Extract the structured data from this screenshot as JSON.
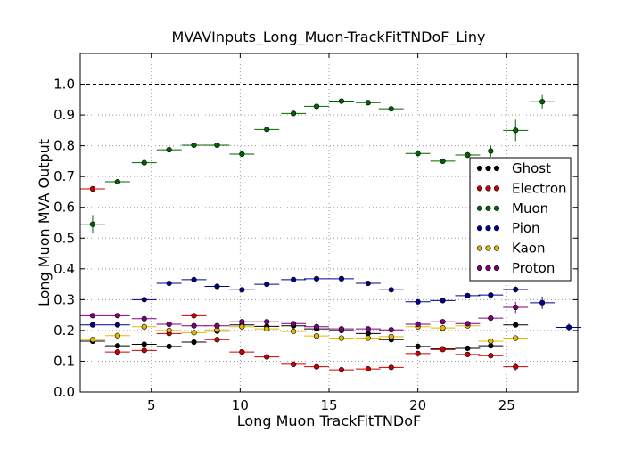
{
  "chart_data": {
    "type": "scatter",
    "title": "MVAVInputs_Long_Muon-TrackFitTNDoF_Liny",
    "xlabel": "Long Muon TrackFitTNDoF",
    "ylabel": "Long Muon MVA Output",
    "xlim": [
      1.0,
      29.0
    ],
    "ylim": [
      0.0,
      1.1
    ],
    "x_ticks": [
      5,
      10,
      15,
      20,
      25
    ],
    "x_tick_labels": [
      "5",
      "10",
      "15",
      "20",
      "25"
    ],
    "y_ticks": [
      0.0,
      0.1,
      0.2,
      0.3,
      0.4,
      0.5,
      0.6,
      0.7,
      0.8,
      0.9,
      1.0
    ],
    "y_tick_labels": [
      "0.0",
      "0.1",
      "0.2",
      "0.3",
      "0.4",
      "0.5",
      "0.6",
      "0.7",
      "0.8",
      "0.9",
      "1.0"
    ],
    "reference_line": 1.0,
    "grid": true,
    "legend_position": "right",
    "bin_half_width": 0.7,
    "series": [
      {
        "name": "Ghost",
        "color": "#000000",
        "x": [
          1.7,
          3.1,
          4.6,
          6.0,
          7.4,
          8.7,
          10.1,
          11.5,
          13.0,
          14.3,
          15.7,
          17.2,
          18.5,
          20.0,
          21.4,
          22.8,
          24.1,
          25.5
        ],
        "y": [
          0.165,
          0.15,
          0.155,
          0.148,
          0.162,
          0.198,
          0.218,
          0.213,
          0.215,
          0.205,
          0.2,
          0.19,
          0.17,
          0.148,
          0.14,
          0.142,
          0.15,
          0.218
        ],
        "err": [
          0.005,
          0.005,
          0.005,
          0.005,
          0.005,
          0.005,
          0.005,
          0.005,
          0.005,
          0.005,
          0.005,
          0.005,
          0.005,
          0.005,
          0.005,
          0.005,
          0.005,
          0.008
        ]
      },
      {
        "name": "Electron",
        "color": "#cc0000",
        "x": [
          1.7,
          3.1,
          4.6,
          6.0,
          7.4,
          8.7,
          10.1,
          11.5,
          13.0,
          14.3,
          15.7,
          17.2,
          18.5,
          20.0,
          21.4,
          22.8,
          24.1,
          25.5
        ],
        "y": [
          0.66,
          0.13,
          0.135,
          0.19,
          0.248,
          0.17,
          0.13,
          0.114,
          0.09,
          0.082,
          0.072,
          0.075,
          0.08,
          0.125,
          0.138,
          0.122,
          0.118,
          0.082
        ],
        "err": [
          0.006,
          0.008,
          0.006,
          0.005,
          0.006,
          0.005,
          0.005,
          0.005,
          0.005,
          0.005,
          0.005,
          0.005,
          0.005,
          0.005,
          0.006,
          0.006,
          0.008,
          0.012
        ]
      },
      {
        "name": "Muon",
        "color": "#006400",
        "x": [
          1.7,
          3.1,
          4.6,
          6.0,
          7.4,
          8.7,
          10.1,
          11.5,
          13.0,
          14.3,
          15.7,
          17.2,
          18.5,
          20.0,
          21.4,
          22.8,
          24.1,
          25.5,
          27.0
        ],
        "y": [
          0.545,
          0.683,
          0.745,
          0.787,
          0.802,
          0.802,
          0.773,
          0.853,
          0.905,
          0.928,
          0.945,
          0.94,
          0.92,
          0.775,
          0.75,
          0.77,
          0.783,
          0.85,
          0.943
        ],
        "err": [
          0.03,
          0.008,
          0.006,
          0.005,
          0.005,
          0.005,
          0.005,
          0.005,
          0.005,
          0.005,
          0.005,
          0.005,
          0.006,
          0.006,
          0.008,
          0.01,
          0.018,
          0.035,
          0.022
        ]
      },
      {
        "name": "Pion",
        "color": "#00008b",
        "x": [
          1.7,
          3.1,
          4.6,
          6.0,
          7.4,
          8.7,
          10.1,
          11.5,
          13.0,
          14.3,
          15.7,
          17.2,
          18.5,
          20.0,
          21.4,
          22.8,
          24.1,
          25.5,
          27.0,
          28.5
        ],
        "y": [
          0.218,
          0.218,
          0.3,
          0.353,
          0.365,
          0.343,
          0.332,
          0.35,
          0.365,
          0.368,
          0.368,
          0.353,
          0.332,
          0.293,
          0.297,
          0.313,
          0.315,
          0.333,
          0.29,
          0.21
        ],
        "err": [
          0.005,
          0.005,
          0.005,
          0.005,
          0.005,
          0.005,
          0.005,
          0.005,
          0.005,
          0.005,
          0.005,
          0.005,
          0.005,
          0.005,
          0.005,
          0.006,
          0.006,
          0.01,
          0.02,
          0.012
        ]
      },
      {
        "name": "Kaon",
        "color": "#e6b800",
        "x": [
          1.7,
          3.1,
          4.6,
          6.0,
          7.4,
          8.7,
          10.1,
          11.5,
          13.0,
          14.3,
          15.7,
          17.2,
          18.5,
          20.0,
          21.4,
          22.8,
          24.1,
          25.5
        ],
        "y": [
          0.17,
          0.183,
          0.212,
          0.2,
          0.193,
          0.202,
          0.212,
          0.205,
          0.197,
          0.182,
          0.175,
          0.175,
          0.18,
          0.212,
          0.208,
          0.215,
          0.165,
          0.175
        ],
        "err": [
          0.005,
          0.005,
          0.005,
          0.005,
          0.005,
          0.005,
          0.005,
          0.005,
          0.005,
          0.005,
          0.005,
          0.005,
          0.005,
          0.005,
          0.005,
          0.006,
          0.006,
          0.01
        ]
      },
      {
        "name": "Proton",
        "color": "#800080",
        "x": [
          1.7,
          3.1,
          4.6,
          6.0,
          7.4,
          8.7,
          10.1,
          11.5,
          13.0,
          14.3,
          15.7,
          17.2,
          18.5,
          20.0,
          21.4,
          22.8,
          24.1,
          25.5
        ],
        "y": [
          0.248,
          0.248,
          0.238,
          0.22,
          0.215,
          0.215,
          0.228,
          0.228,
          0.222,
          0.212,
          0.205,
          0.205,
          0.202,
          0.22,
          0.228,
          0.222,
          0.24,
          0.275
        ],
        "err": [
          0.005,
          0.005,
          0.005,
          0.005,
          0.005,
          0.005,
          0.005,
          0.005,
          0.005,
          0.005,
          0.005,
          0.005,
          0.005,
          0.005,
          0.006,
          0.006,
          0.008,
          0.018
        ]
      }
    ]
  }
}
